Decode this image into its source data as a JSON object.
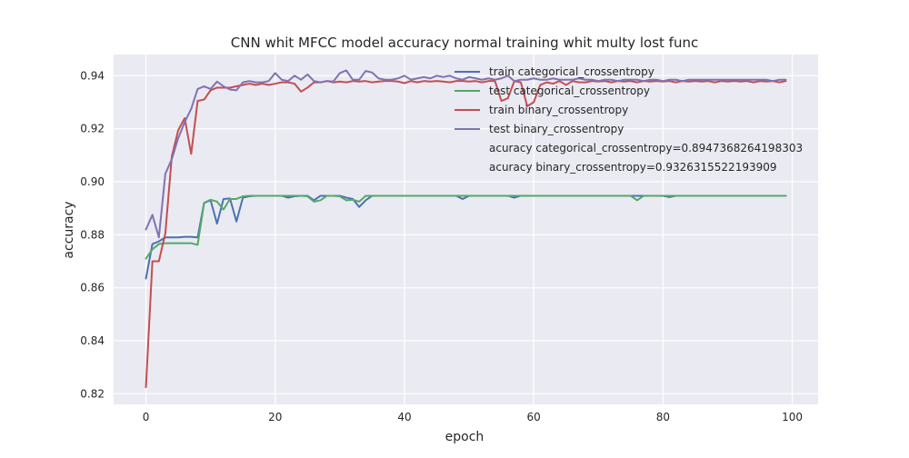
{
  "chart_data": {
    "type": "line",
    "title": "CNN whit MFCC model accuracy normal training whit multy lost func",
    "xlabel": "epoch",
    "ylabel": "accuracy",
    "xlim": [
      -5,
      104
    ],
    "ylim": [
      0.816,
      0.948
    ],
    "xticks": [
      0,
      20,
      40,
      60,
      80,
      100
    ],
    "xtick_labels": [
      "0",
      "20",
      "40",
      "60",
      "80",
      "100"
    ],
    "yticks": [
      0.82,
      0.84,
      0.86,
      0.88,
      0.9,
      0.92,
      0.94
    ],
    "ytick_labels": [
      "0.82",
      "0.84",
      "0.86",
      "0.88",
      "0.90",
      "0.92",
      "0.94"
    ],
    "grid": true,
    "legend_position": "top-right",
    "x": [
      0,
      1,
      2,
      3,
      4,
      5,
      6,
      7,
      8,
      9,
      10,
      11,
      12,
      13,
      14,
      15,
      16,
      17,
      18,
      19,
      20,
      21,
      22,
      23,
      24,
      25,
      26,
      27,
      28,
      29,
      30,
      31,
      32,
      33,
      34,
      35,
      36,
      37,
      38,
      39,
      40,
      41,
      42,
      43,
      44,
      45,
      46,
      47,
      48,
      49,
      50,
      51,
      52,
      53,
      54,
      55,
      56,
      57,
      58,
      59,
      60,
      61,
      62,
      63,
      64,
      65,
      66,
      67,
      68,
      69,
      70,
      71,
      72,
      73,
      74,
      75,
      76,
      77,
      78,
      79,
      80,
      81,
      82,
      83,
      84,
      85,
      86,
      87,
      88,
      89,
      90,
      91,
      92,
      93,
      94,
      95,
      96,
      97,
      98,
      99
    ],
    "series": [
      {
        "name": "train categorical_crossentropy",
        "color": "#4c72b0",
        "values": [
          0.8635,
          0.8765,
          0.8775,
          0.879,
          0.879,
          0.879,
          0.8792,
          0.8792,
          0.879,
          0.892,
          0.893,
          0.8842,
          0.8935,
          0.8937,
          0.885,
          0.894,
          0.8945,
          0.8947,
          0.8947,
          0.8947,
          0.8947,
          0.8947,
          0.894,
          0.8945,
          0.8947,
          0.8947,
          0.893,
          0.8947,
          0.8947,
          0.8947,
          0.8947,
          0.894,
          0.8935,
          0.8905,
          0.893,
          0.8947,
          0.8947,
          0.8947,
          0.8947,
          0.8947,
          0.8947,
          0.8947,
          0.8947,
          0.8947,
          0.8947,
          0.8947,
          0.8947,
          0.8947,
          0.8947,
          0.8935,
          0.8947,
          0.8947,
          0.8947,
          0.8947,
          0.8947,
          0.8947,
          0.8947,
          0.894,
          0.8947,
          0.8947,
          0.8947,
          0.8947,
          0.8947,
          0.8947,
          0.8947,
          0.8947,
          0.8947,
          0.8947,
          0.8947,
          0.8947,
          0.8947,
          0.8947,
          0.8947,
          0.8947,
          0.8947,
          0.8947,
          0.8947,
          0.8947,
          0.8947,
          0.8947,
          0.8947,
          0.8942,
          0.8947,
          0.8947,
          0.8947,
          0.8947,
          0.8947,
          0.8947,
          0.8947,
          0.8947,
          0.8947,
          0.8947,
          0.8947,
          0.8947,
          0.8947,
          0.8947,
          0.8947,
          0.8947,
          0.8947,
          0.8947
        ]
      },
      {
        "name": "test categorical_crossentropy",
        "color": "#55a868",
        "values": [
          0.871,
          0.8745,
          0.8765,
          0.8768,
          0.8768,
          0.8768,
          0.8768,
          0.8768,
          0.8762,
          0.892,
          0.8932,
          0.8925,
          0.8895,
          0.8935,
          0.8935,
          0.8945,
          0.8947,
          0.8947,
          0.8947,
          0.8947,
          0.8947,
          0.8947,
          0.8947,
          0.8947,
          0.8947,
          0.8945,
          0.8925,
          0.893,
          0.8947,
          0.8947,
          0.8945,
          0.893,
          0.8932,
          0.8925,
          0.8947,
          0.8947,
          0.8947,
          0.8947,
          0.8947,
          0.8947,
          0.8947,
          0.8947,
          0.8947,
          0.8947,
          0.8947,
          0.8947,
          0.8947,
          0.8947,
          0.8947,
          0.8947,
          0.8947,
          0.8947,
          0.8947,
          0.8947,
          0.8947,
          0.8947,
          0.8947,
          0.8947,
          0.8947,
          0.8947,
          0.8947,
          0.8947,
          0.8947,
          0.8947,
          0.8947,
          0.8947,
          0.8947,
          0.8947,
          0.8947,
          0.8947,
          0.8947,
          0.8947,
          0.8947,
          0.8947,
          0.8947,
          0.8947,
          0.893,
          0.8947,
          0.8947,
          0.8947,
          0.8947,
          0.8947,
          0.8947,
          0.8947,
          0.8947,
          0.8947,
          0.8947,
          0.8947,
          0.8947,
          0.8947,
          0.8947,
          0.8947,
          0.8947,
          0.8947,
          0.8947,
          0.8947,
          0.8947,
          0.8947,
          0.8947,
          0.8947
        ]
      },
      {
        "name": "train binary_crossentropy",
        "color": "#c44e52",
        "values": [
          0.8225,
          0.87,
          0.87,
          0.8805,
          0.9095,
          0.9195,
          0.924,
          0.9105,
          0.9305,
          0.931,
          0.9345,
          0.9355,
          0.9355,
          0.9355,
          0.936,
          0.9365,
          0.937,
          0.9365,
          0.937,
          0.9365,
          0.937,
          0.9375,
          0.9375,
          0.937,
          0.934,
          0.9355,
          0.9375,
          0.9375,
          0.938,
          0.9375,
          0.9378,
          0.9375,
          0.938,
          0.9378,
          0.938,
          0.9375,
          0.9378,
          0.938,
          0.938,
          0.9378,
          0.9372,
          0.938,
          0.9375,
          0.938,
          0.9378,
          0.938,
          0.9378,
          0.9375,
          0.938,
          0.938,
          0.9378,
          0.938,
          0.9375,
          0.938,
          0.938,
          0.9305,
          0.9315,
          0.938,
          0.9375,
          0.9285,
          0.93,
          0.9365,
          0.9375,
          0.937,
          0.938,
          0.9365,
          0.938,
          0.9375,
          0.9375,
          0.938,
          0.9378,
          0.938,
          0.9375,
          0.938,
          0.9378,
          0.938,
          0.9375,
          0.938,
          0.9378,
          0.938,
          0.9378,
          0.938,
          0.9375,
          0.938,
          0.9378,
          0.938,
          0.9378,
          0.938,
          0.9375,
          0.938,
          0.9378,
          0.938,
          0.9378,
          0.938,
          0.9375,
          0.938,
          0.9378,
          0.938,
          0.9375,
          0.938
        ]
      },
      {
        "name": "test binary_crossentropy",
        "color": "#8172b2",
        "values": [
          0.882,
          0.8875,
          0.879,
          0.903,
          0.9085,
          0.9165,
          0.9225,
          0.9275,
          0.935,
          0.936,
          0.935,
          0.9378,
          0.936,
          0.9348,
          0.9345,
          0.9375,
          0.938,
          0.9375,
          0.9375,
          0.938,
          0.941,
          0.9385,
          0.938,
          0.94,
          0.9385,
          0.9405,
          0.938,
          0.9375,
          0.938,
          0.9378,
          0.941,
          0.942,
          0.9385,
          0.9385,
          0.9418,
          0.9412,
          0.939,
          0.9385,
          0.9385,
          0.939,
          0.94,
          0.9385,
          0.939,
          0.9395,
          0.939,
          0.94,
          0.9395,
          0.94,
          0.939,
          0.9385,
          0.9395,
          0.939,
          0.9385,
          0.939,
          0.9385,
          0.939,
          0.94,
          0.938,
          0.9385,
          0.9385,
          0.939,
          0.9385,
          0.9385,
          0.939,
          0.9385,
          0.9385,
          0.9385,
          0.939,
          0.9385,
          0.9385,
          0.938,
          0.9385,
          0.9385,
          0.938,
          0.9385,
          0.9385,
          0.9385,
          0.938,
          0.9385,
          0.9385,
          0.938,
          0.9385,
          0.9385,
          0.938,
          0.9385,
          0.9385,
          0.9385,
          0.9385,
          0.9385,
          0.9385,
          0.9385,
          0.9385,
          0.9385,
          0.9385,
          0.9385,
          0.9385,
          0.9385,
          0.938,
          0.9385,
          0.9385
        ]
      }
    ],
    "annotations": [
      "acuracy categorical_crossentropy=0.8947368264198303",
      "acuracy binary_crossentropy=0.9326315522193909"
    ]
  },
  "colors": {
    "plot_background": "#eaeaf2",
    "grid": "#ffffff",
    "figure_background": "#ffffff"
  }
}
